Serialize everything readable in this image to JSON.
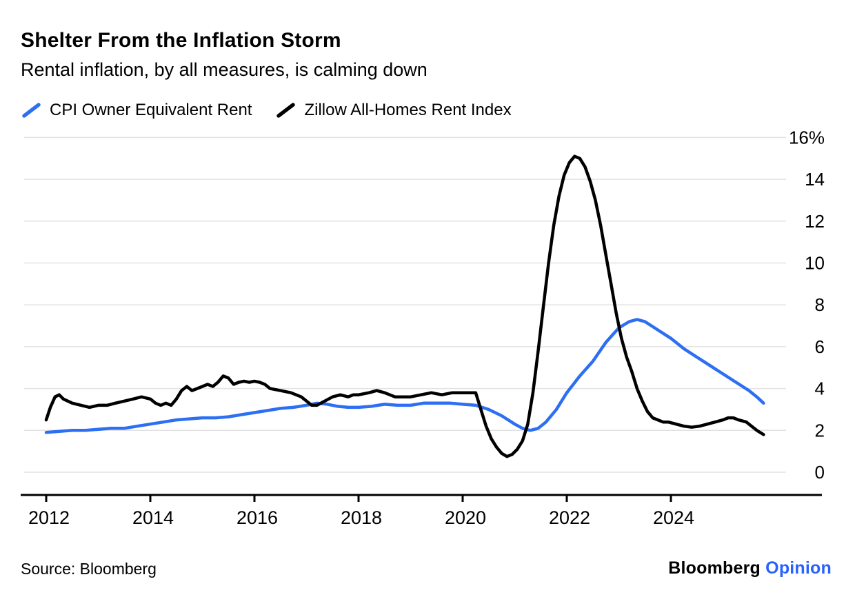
{
  "header": {
    "title": "Shelter From the Inflation Storm",
    "subtitle": "Rental inflation, by all measures, is calming down"
  },
  "footer": {
    "source": "Source: Bloomberg",
    "brand": "Bloomberg",
    "brand_suffix": "Opinion"
  },
  "colors": {
    "cpi_line": "#2d6ff2",
    "zillow_line": "#000000",
    "grid": "#e2e2e2",
    "axis": "#000000",
    "opinion_blue": "#2962ff"
  },
  "chart_data": {
    "type": "line",
    "title": "Shelter From the Inflation Storm",
    "subtitle": "Rental inflation, by all measures, is calming down",
    "grid": true,
    "legend_position": "top-left",
    "x_axis": {
      "ticks": [
        2012,
        2014,
        2016,
        2018,
        2020,
        2022,
        2024
      ],
      "labels": [
        "2012",
        "2014",
        "2016",
        "2018",
        "2020",
        "2022",
        "2024"
      ],
      "range": [
        2011.5,
        2026.3
      ]
    },
    "y_axis": {
      "ticks": [
        0,
        2,
        4,
        6,
        8,
        10,
        12,
        14,
        16
      ],
      "labels": [
        "0",
        "2",
        "4",
        "6",
        "8",
        "10",
        "12",
        "14",
        "16%"
      ],
      "range": [
        0,
        16
      ],
      "unit": "%"
    },
    "series": [
      {
        "name": "CPI Owner Equivalent Rent",
        "color": "#2d6ff2",
        "points": [
          [
            2012.0,
            1.9
          ],
          [
            2012.25,
            1.95
          ],
          [
            2012.5,
            2.0
          ],
          [
            2012.75,
            2.0
          ],
          [
            2013.0,
            2.05
          ],
          [
            2013.25,
            2.1
          ],
          [
            2013.5,
            2.1
          ],
          [
            2013.75,
            2.2
          ],
          [
            2014.0,
            2.3
          ],
          [
            2014.25,
            2.4
          ],
          [
            2014.5,
            2.5
          ],
          [
            2014.75,
            2.55
          ],
          [
            2015.0,
            2.6
          ],
          [
            2015.25,
            2.6
          ],
          [
            2015.5,
            2.65
          ],
          [
            2015.75,
            2.75
          ],
          [
            2016.0,
            2.85
          ],
          [
            2016.25,
            2.95
          ],
          [
            2016.5,
            3.05
          ],
          [
            2016.75,
            3.1
          ],
          [
            2017.0,
            3.2
          ],
          [
            2017.2,
            3.3
          ],
          [
            2017.4,
            3.25
          ],
          [
            2017.6,
            3.15
          ],
          [
            2017.8,
            3.1
          ],
          [
            2018.0,
            3.1
          ],
          [
            2018.25,
            3.15
          ],
          [
            2018.5,
            3.25
          ],
          [
            2018.75,
            3.2
          ],
          [
            2019.0,
            3.2
          ],
          [
            2019.25,
            3.3
          ],
          [
            2019.5,
            3.3
          ],
          [
            2019.75,
            3.3
          ],
          [
            2020.0,
            3.25
          ],
          [
            2020.25,
            3.2
          ],
          [
            2020.5,
            3.0
          ],
          [
            2020.75,
            2.7
          ],
          [
            2021.0,
            2.3
          ],
          [
            2021.15,
            2.1
          ],
          [
            2021.3,
            2.0
          ],
          [
            2021.45,
            2.1
          ],
          [
            2021.6,
            2.4
          ],
          [
            2021.8,
            3.0
          ],
          [
            2022.0,
            3.8
          ],
          [
            2022.25,
            4.6
          ],
          [
            2022.5,
            5.3
          ],
          [
            2022.75,
            6.2
          ],
          [
            2023.0,
            6.9
          ],
          [
            2023.2,
            7.2
          ],
          [
            2023.35,
            7.3
          ],
          [
            2023.5,
            7.2
          ],
          [
            2023.75,
            6.8
          ],
          [
            2024.0,
            6.4
          ],
          [
            2024.25,
            5.9
          ],
          [
            2024.5,
            5.5
          ],
          [
            2024.75,
            5.1
          ],
          [
            2025.0,
            4.7
          ],
          [
            2025.25,
            4.3
          ],
          [
            2025.5,
            3.9
          ],
          [
            2025.65,
            3.6
          ],
          [
            2025.78,
            3.3
          ]
        ]
      },
      {
        "name": "Zillow All-Homes Rent Index",
        "color": "#000000",
        "points": [
          [
            2012.0,
            2.5
          ],
          [
            2012.08,
            3.1
          ],
          [
            2012.17,
            3.6
          ],
          [
            2012.25,
            3.7
          ],
          [
            2012.33,
            3.5
          ],
          [
            2012.5,
            3.3
          ],
          [
            2012.67,
            3.2
          ],
          [
            2012.83,
            3.1
          ],
          [
            2013.0,
            3.2
          ],
          [
            2013.17,
            3.2
          ],
          [
            2013.33,
            3.3
          ],
          [
            2013.5,
            3.4
          ],
          [
            2013.67,
            3.5
          ],
          [
            2013.83,
            3.6
          ],
          [
            2014.0,
            3.5
          ],
          [
            2014.1,
            3.3
          ],
          [
            2014.2,
            3.2
          ],
          [
            2014.3,
            3.3
          ],
          [
            2014.4,
            3.2
          ],
          [
            2014.5,
            3.5
          ],
          [
            2014.6,
            3.9
          ],
          [
            2014.7,
            4.1
          ],
          [
            2014.8,
            3.9
          ],
          [
            2014.9,
            4.0
          ],
          [
            2015.0,
            4.1
          ],
          [
            2015.1,
            4.2
          ],
          [
            2015.2,
            4.1
          ],
          [
            2015.3,
            4.3
          ],
          [
            2015.4,
            4.6
          ],
          [
            2015.5,
            4.5
          ],
          [
            2015.6,
            4.2
          ],
          [
            2015.7,
            4.3
          ],
          [
            2015.8,
            4.35
          ],
          [
            2015.9,
            4.3
          ],
          [
            2016.0,
            4.35
          ],
          [
            2016.1,
            4.3
          ],
          [
            2016.2,
            4.2
          ],
          [
            2016.3,
            4.0
          ],
          [
            2016.5,
            3.9
          ],
          [
            2016.7,
            3.8
          ],
          [
            2016.9,
            3.6
          ],
          [
            2017.0,
            3.4
          ],
          [
            2017.1,
            3.2
          ],
          [
            2017.2,
            3.2
          ],
          [
            2017.35,
            3.4
          ],
          [
            2017.5,
            3.6
          ],
          [
            2017.65,
            3.7
          ],
          [
            2017.8,
            3.6
          ],
          [
            2017.9,
            3.7
          ],
          [
            2018.0,
            3.7
          ],
          [
            2018.2,
            3.8
          ],
          [
            2018.35,
            3.9
          ],
          [
            2018.5,
            3.8
          ],
          [
            2018.7,
            3.6
          ],
          [
            2018.85,
            3.6
          ],
          [
            2019.0,
            3.6
          ],
          [
            2019.2,
            3.7
          ],
          [
            2019.4,
            3.8
          ],
          [
            2019.6,
            3.7
          ],
          [
            2019.8,
            3.8
          ],
          [
            2020.0,
            3.8
          ],
          [
            2020.15,
            3.8
          ],
          [
            2020.25,
            3.8
          ],
          [
            2020.35,
            3.0
          ],
          [
            2020.45,
            2.2
          ],
          [
            2020.55,
            1.6
          ],
          [
            2020.65,
            1.2
          ],
          [
            2020.75,
            0.9
          ],
          [
            2020.85,
            0.75
          ],
          [
            2020.95,
            0.85
          ],
          [
            2021.05,
            1.1
          ],
          [
            2021.15,
            1.5
          ],
          [
            2021.25,
            2.3
          ],
          [
            2021.35,
            3.8
          ],
          [
            2021.45,
            5.8
          ],
          [
            2021.55,
            7.9
          ],
          [
            2021.65,
            10.0
          ],
          [
            2021.75,
            11.8
          ],
          [
            2021.85,
            13.2
          ],
          [
            2021.95,
            14.2
          ],
          [
            2022.05,
            14.8
          ],
          [
            2022.15,
            15.1
          ],
          [
            2022.25,
            15.0
          ],
          [
            2022.35,
            14.6
          ],
          [
            2022.45,
            13.9
          ],
          [
            2022.55,
            13.0
          ],
          [
            2022.65,
            11.8
          ],
          [
            2022.75,
            10.4
          ],
          [
            2022.85,
            9.0
          ],
          [
            2022.95,
            7.6
          ],
          [
            2023.05,
            6.4
          ],
          [
            2023.15,
            5.5
          ],
          [
            2023.25,
            4.8
          ],
          [
            2023.35,
            4.0
          ],
          [
            2023.45,
            3.4
          ],
          [
            2023.55,
            2.9
          ],
          [
            2023.65,
            2.6
          ],
          [
            2023.75,
            2.5
          ],
          [
            2023.85,
            2.4
          ],
          [
            2023.95,
            2.4
          ],
          [
            2024.1,
            2.3
          ],
          [
            2024.25,
            2.2
          ],
          [
            2024.4,
            2.15
          ],
          [
            2024.55,
            2.2
          ],
          [
            2024.7,
            2.3
          ],
          [
            2024.85,
            2.4
          ],
          [
            2025.0,
            2.5
          ],
          [
            2025.1,
            2.6
          ],
          [
            2025.2,
            2.6
          ],
          [
            2025.3,
            2.5
          ],
          [
            2025.45,
            2.4
          ],
          [
            2025.55,
            2.2
          ],
          [
            2025.65,
            2.0
          ],
          [
            2025.78,
            1.8
          ]
        ]
      }
    ]
  }
}
